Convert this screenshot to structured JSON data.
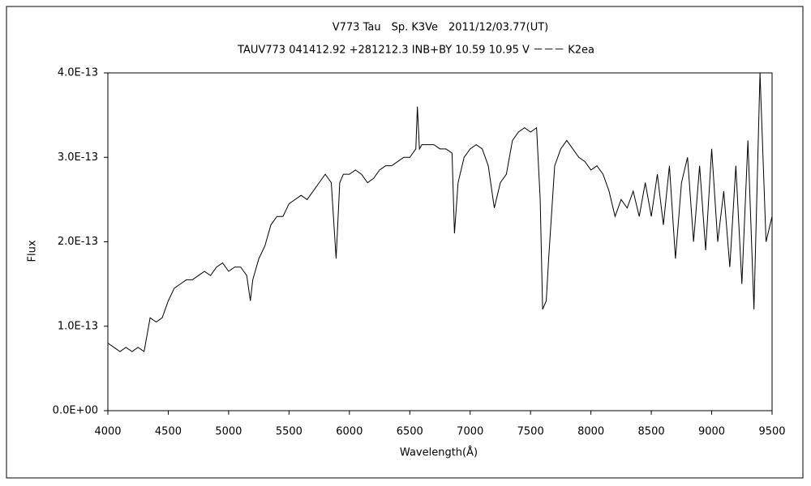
{
  "chart_data": {
    "type": "line",
    "title": "V773 Tau　Sp. K3Ve　2011/12/03.77(UT)",
    "subtitle": "TAUV773 041412.92 +281212.3 INB+BY 10.59 10.95 V －－－ K2ea",
    "x_label": "Wavelength(Å)",
    "y_label": "Flux",
    "xlim": [
      4000,
      9500
    ],
    "xticks": [
      4000,
      4500,
      5000,
      5500,
      6000,
      6500,
      7000,
      7500,
      8000,
      8500,
      9000,
      9500
    ],
    "ylim": [
      0,
      4e-13
    ],
    "yticks": [
      {
        "value": 0,
        "label": "0.0E+00"
      },
      {
        "value": 1e-13,
        "label": "1.0E-13"
      },
      {
        "value": 2e-13,
        "label": "2.0E-13"
      },
      {
        "value": 3e-13,
        "label": "3.0E-13"
      },
      {
        "value": 4e-13,
        "label": "4.0E-13"
      }
    ],
    "grid": false,
    "color": "#000000",
    "x": [
      4000,
      4050,
      4100,
      4150,
      4200,
      4250,
      4300,
      4350,
      4400,
      4450,
      4500,
      4550,
      4600,
      4650,
      4700,
      4750,
      4800,
      4850,
      4900,
      4950,
      5000,
      5050,
      5100,
      5150,
      5180,
      5200,
      5250,
      5300,
      5350,
      5400,
      5450,
      5500,
      5550,
      5600,
      5650,
      5700,
      5750,
      5800,
      5850,
      5890,
      5920,
      5950,
      6000,
      6050,
      6100,
      6150,
      6200,
      6250,
      6300,
      6350,
      6400,
      6450,
      6500,
      6550,
      6563,
      6580,
      6600,
      6650,
      6700,
      6750,
      6800,
      6850,
      6870,
      6900,
      6950,
      7000,
      7050,
      7100,
      7150,
      7200,
      7250,
      7300,
      7350,
      7400,
      7450,
      7500,
      7550,
      7580,
      7600,
      7630,
      7650,
      7700,
      7750,
      7800,
      7850,
      7900,
      7950,
      8000,
      8050,
      8100,
      8150,
      8200,
      8250,
      8300,
      8350,
      8400,
      8450,
      8500,
      8550,
      8600,
      8650,
      8700,
      8750,
      8800,
      8850,
      8900,
      8950,
      9000,
      9050,
      9100,
      9150,
      9200,
      9250,
      9300,
      9350,
      9400,
      9450,
      9500
    ],
    "values": [
      8e-14,
      7.5e-14,
      7e-14,
      7.5e-14,
      7e-14,
      7.5e-14,
      7e-14,
      1.1e-13,
      1.05e-13,
      1.1e-13,
      1.3e-13,
      1.45e-13,
      1.5e-13,
      1.55e-13,
      1.55e-13,
      1.6e-13,
      1.65e-13,
      1.6e-13,
      1.7e-13,
      1.75e-13,
      1.65e-13,
      1.7e-13,
      1.7e-13,
      1.6e-13,
      1.3e-13,
      1.55e-13,
      1.8e-13,
      1.95e-13,
      2.2e-13,
      2.3e-13,
      2.3e-13,
      2.45e-13,
      2.5e-13,
      2.55e-13,
      2.5e-13,
      2.6e-13,
      2.7e-13,
      2.8e-13,
      2.7e-13,
      1.8e-13,
      2.7e-13,
      2.8e-13,
      2.8e-13,
      2.85e-13,
      2.8e-13,
      2.7e-13,
      2.75e-13,
      2.85e-13,
      2.9e-13,
      2.9e-13,
      2.95e-13,
      3e-13,
      3e-13,
      3.1e-13,
      3.6e-13,
      3.1e-13,
      3.15e-13,
      3.15e-13,
      3.15e-13,
      3.1e-13,
      3.1e-13,
      3.05e-13,
      2.1e-13,
      2.7e-13,
      3e-13,
      3.1e-13,
      3.15e-13,
      3.1e-13,
      2.9e-13,
      2.4e-13,
      2.7e-13,
      2.8e-13,
      3.2e-13,
      3.3e-13,
      3.35e-13,
      3.3e-13,
      3.35e-13,
      2.5e-13,
      1.2e-13,
      1.3e-13,
      1.8e-13,
      2.9e-13,
      3.1e-13,
      3.2e-13,
      3.1e-13,
      3e-13,
      2.95e-13,
      2.85e-13,
      2.9e-13,
      2.8e-13,
      2.6e-13,
      2.3e-13,
      2.5e-13,
      2.4e-13,
      2.6e-13,
      2.3e-13,
      2.7e-13,
      2.3e-13,
      2.8e-13,
      2.2e-13,
      2.9e-13,
      1.8e-13,
      2.7e-13,
      3e-13,
      2e-13,
      2.9e-13,
      1.9e-13,
      3.1e-13,
      2e-13,
      2.6e-13,
      1.7e-13,
      2.9e-13,
      1.5e-13,
      3.2e-13,
      1.2e-13,
      4e-13,
      2e-13,
      2.3e-13
    ]
  }
}
